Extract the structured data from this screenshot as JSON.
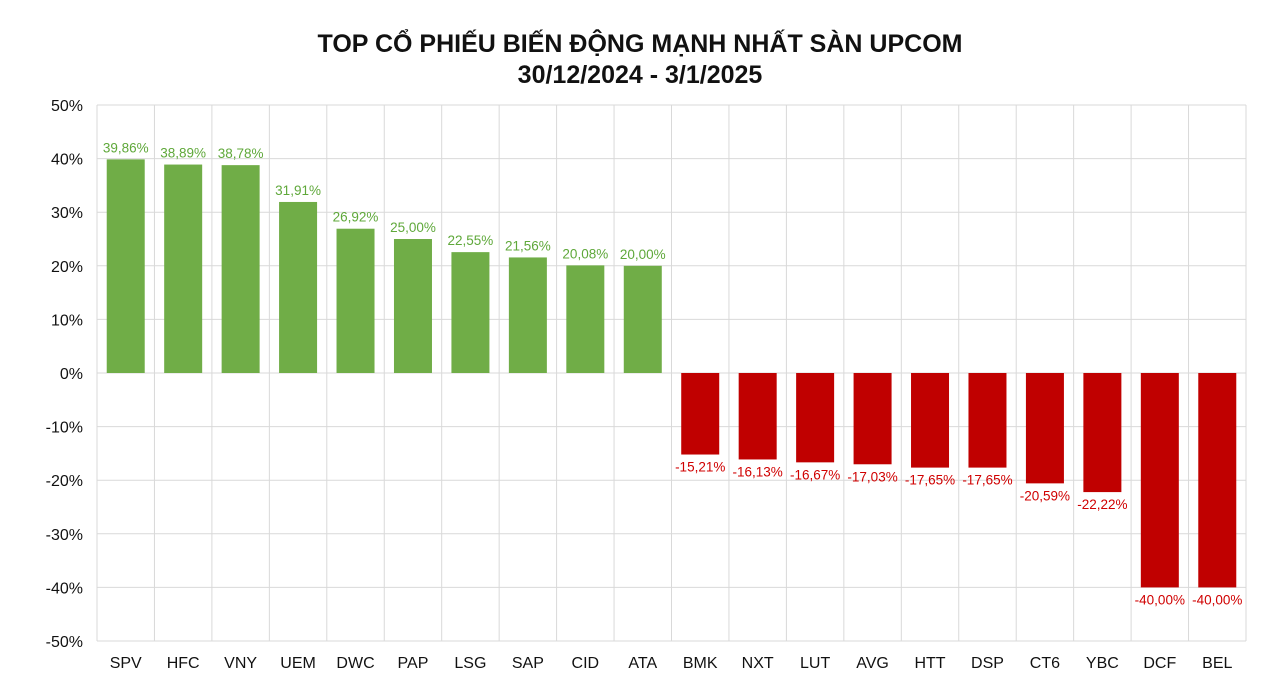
{
  "chart_data": {
    "type": "bar",
    "title": "TOP CỔ PHIẾU BIẾN ĐỘNG MẠNH NHẤT SÀN UPCOM",
    "subtitle": "30/12/2024 - 3/1/2025",
    "xlabel": "",
    "ylabel": "",
    "ylim": [
      -50,
      50
    ],
    "yticks": [
      50,
      40,
      30,
      20,
      10,
      0,
      -10,
      -20,
      -30,
      -40,
      -50
    ],
    "ytick_labels": [
      "50%",
      "40%",
      "30%",
      "20%",
      "10%",
      "0%",
      "-10%",
      "-20%",
      "-30%",
      "-40%",
      "-50%"
    ],
    "grid": true,
    "categories": [
      "SPV",
      "HFC",
      "VNY",
      "UEM",
      "DWC",
      "PAP",
      "LSG",
      "SAP",
      "CID",
      "ATA",
      "BMK",
      "NXT",
      "LUT",
      "AVG",
      "HTT",
      "DSP",
      "CT6",
      "YBC",
      "DCF",
      "BEL"
    ],
    "values": [
      39.86,
      38.89,
      38.78,
      31.91,
      26.92,
      25.0,
      22.55,
      21.56,
      20.08,
      20.0,
      -15.21,
      -16.13,
      -16.67,
      -17.03,
      -17.65,
      -17.65,
      -20.59,
      -22.22,
      -40.0,
      -40.0
    ],
    "data_labels": [
      "39,86%",
      "38,89%",
      "38,78%",
      "31,91%",
      "26,92%",
      "25,00%",
      "22,55%",
      "21,56%",
      "20,08%",
      "20,00%",
      "-15,21%",
      "-16,13%",
      "-16,67%",
      "-17,03%",
      "-17,65%",
      "-17,65%",
      "-20,59%",
      "-22,22%",
      "-40,00%",
      "-40,00%"
    ],
    "colors": {
      "positive": "#70ad47",
      "negative": "#c00000"
    }
  }
}
